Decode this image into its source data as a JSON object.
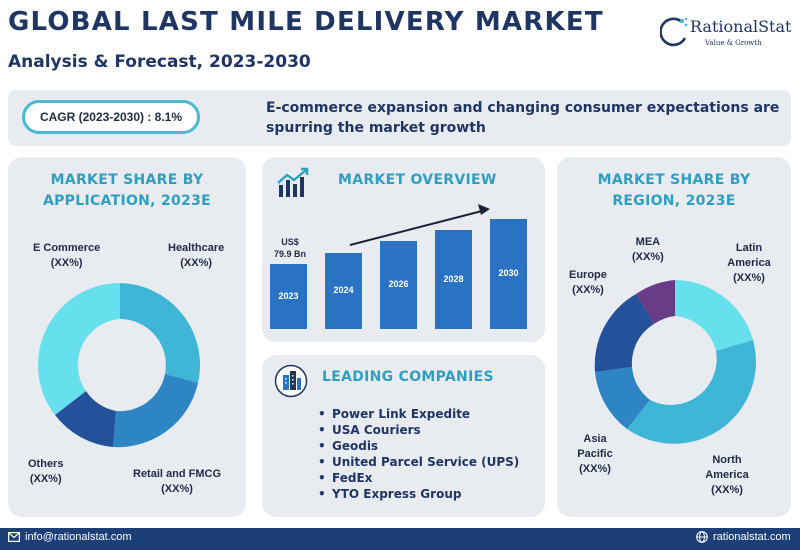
{
  "header": {
    "title": "GLOBAL LAST MILE DELIVERY MARKET",
    "subtitle": "Analysis & Forecast, 2023-2030"
  },
  "logo": {
    "name": "RationalStat",
    "tagline": "Value & Growth"
  },
  "banner": {
    "cagr": "CAGR (2023-2030) : 8.1%",
    "headline": "E-commerce expansion and changing consumer expectations are spurring the market growth"
  },
  "application_card": {
    "title_line1": "MARKET SHARE BY",
    "title_line2": "APPLICATION, 2023E",
    "labels": [
      {
        "name": "E Commerce",
        "value": "(XX%)"
      },
      {
        "name": "Healthcare",
        "value": "(XX%)"
      },
      {
        "name": "Retail and FMCG",
        "value": "(XX%)"
      },
      {
        "name": "Others",
        "value": "(XX%)"
      }
    ]
  },
  "overview_card": {
    "title": "MARKET OVERVIEW",
    "value_label_line1": "US$",
    "value_label_line2": "79.9 Bn",
    "bars": [
      {
        "year": "2023",
        "level": 0.59
      },
      {
        "year": "2024",
        "level": 0.69
      },
      {
        "year": "2026",
        "level": 0.8
      },
      {
        "year": "2028",
        "level": 0.9
      },
      {
        "year": "2030",
        "level": 1.0
      }
    ]
  },
  "companies_card": {
    "title": "LEADING COMPANIES",
    "items": [
      "Power Link Expedite",
      "USA Couriers",
      "Geodis",
      "United Parcel Service (UPS)",
      "FedEx",
      "YTO Express Group"
    ]
  },
  "region_card": {
    "title_line1": "MARKET SHARE BY",
    "title_line2": "REGION, 2023E",
    "labels": [
      {
        "name": "MEA",
        "value": "(XX%)"
      },
      {
        "name": "Latin America",
        "value": "(XX%)"
      },
      {
        "name": "Europe",
        "value": "(XX%)"
      },
      {
        "name": "Asia Pacific",
        "value": "(XX%)"
      },
      {
        "name": "North America",
        "value": "(XX%)"
      }
    ]
  },
  "footer": {
    "email": "info@rationalstat.com",
    "website": "rationalstat.com"
  },
  "colors": {
    "navy": "#1f3562",
    "teal_title": "#2f9fc0",
    "card_bg": "#e8ebf0",
    "bar_blue": "#2a73c2",
    "footer_bg": "#1d3f77"
  },
  "icons": [
    "logo-mark-icon",
    "growth-chart-icon",
    "buildings-icon",
    "email-icon",
    "globe-icon"
  ]
}
